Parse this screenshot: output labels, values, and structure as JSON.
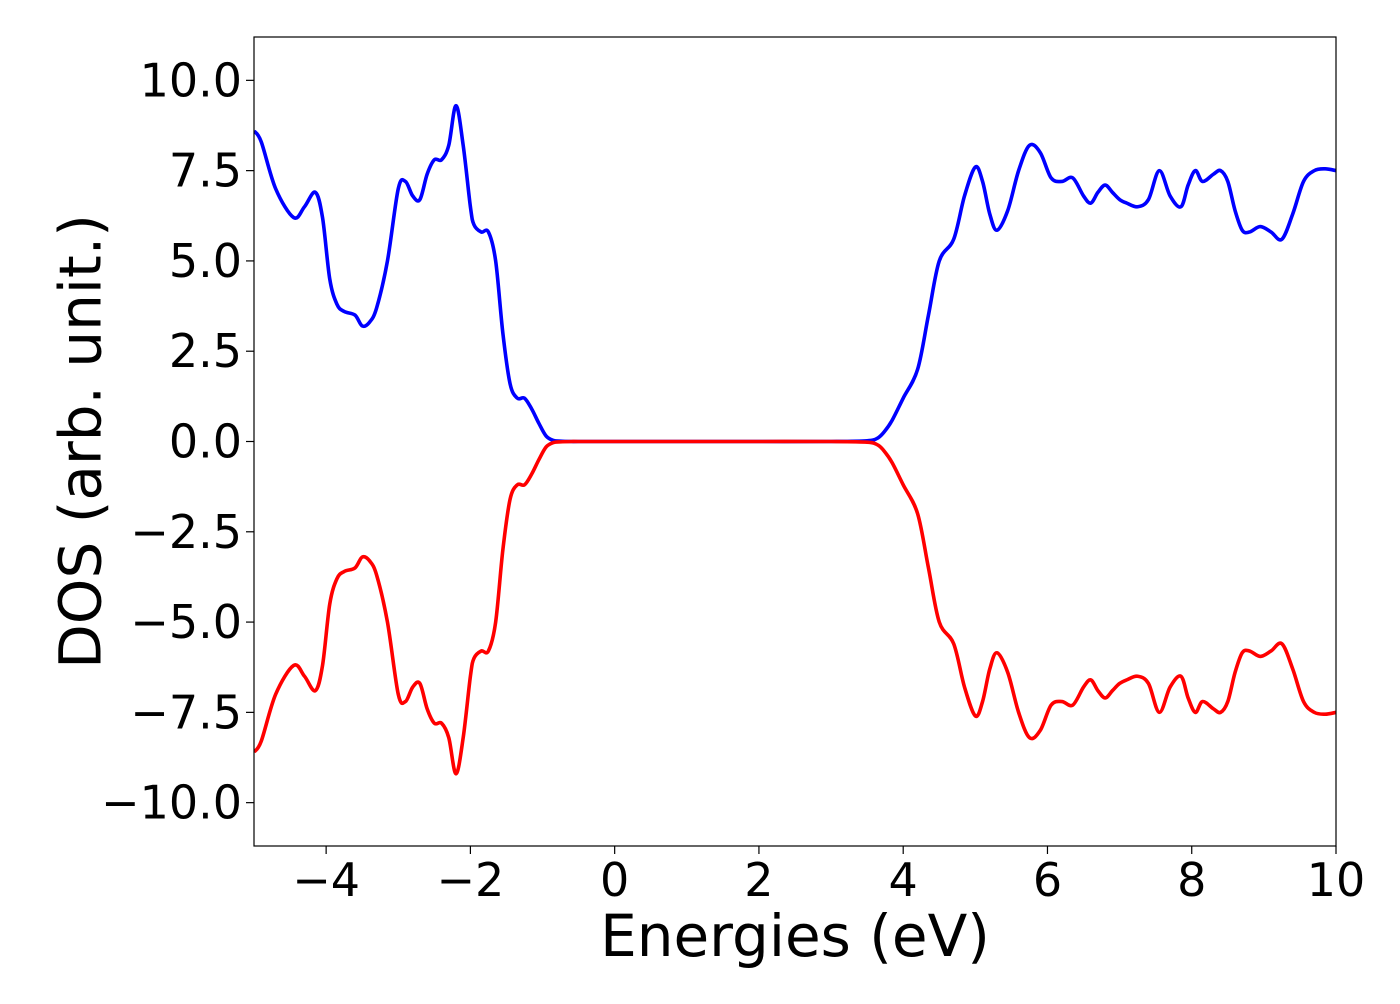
{
  "chart_data": {
    "type": "line",
    "title": "",
    "xlabel": "Energies (eV)",
    "ylabel": "DOS (arb. unit.)",
    "xlim": [
      -5,
      10
    ],
    "ylim": [
      -11.2,
      11.2
    ],
    "xticks": [
      -4,
      -2,
      0,
      2,
      4,
      6,
      8,
      10
    ],
    "xtick_labels": [
      "−4",
      "−2",
      "0",
      "2",
      "4",
      "6",
      "8",
      "10"
    ],
    "yticks": [
      10,
      7.5,
      5,
      2.5,
      0,
      -2.5,
      -5,
      -7.5,
      -10
    ],
    "ytick_labels": [
      "10.0",
      "7.5",
      "5.0",
      "2.5",
      "0.0",
      "−2.5",
      "−5.0",
      "−7.5",
      "−10.0"
    ],
    "grid": false,
    "legend": "none",
    "colors": {
      "spin_up": "#0000ff",
      "spin_down": "#ff0000",
      "axes": "#000000",
      "background": "#ffffff"
    },
    "series": [
      {
        "color": "#0000ff",
        "x": [
          -5.0,
          -4.9,
          -4.7,
          -4.45,
          -4.3,
          -4.15,
          -4.05,
          -3.95,
          -3.85,
          -3.75,
          -3.6,
          -3.5,
          -3.4,
          -3.3,
          -3.15,
          -3.0,
          -2.9,
          -2.8,
          -2.7,
          -2.6,
          -2.5,
          -2.4,
          -2.3,
          -2.2,
          -2.1,
          -2.0,
          -1.95,
          -1.85,
          -1.75,
          -1.65,
          -1.55,
          -1.45,
          -1.35,
          -1.25,
          -1.15,
          -1.05,
          -0.95,
          -0.85,
          -0.75,
          -0.6,
          -0.5,
          0.0,
          1.0,
          2.0,
          3.0,
          3.5,
          3.65,
          3.75,
          3.85,
          4.0,
          4.2,
          4.35,
          4.5,
          4.7,
          4.85,
          5.0,
          5.1,
          5.2,
          5.3,
          5.45,
          5.6,
          5.75,
          5.9,
          6.05,
          6.2,
          6.35,
          6.5,
          6.6,
          6.7,
          6.8,
          6.9,
          7.0,
          7.1,
          7.25,
          7.4,
          7.55,
          7.7,
          7.85,
          7.95,
          8.05,
          8.15,
          8.3,
          8.4,
          8.5,
          8.6,
          8.7,
          8.8,
          8.95,
          9.1,
          9.25,
          9.4,
          9.55,
          9.7,
          9.85,
          10.0
        ],
        "y": [
          8.6,
          8.3,
          7.0,
          6.2,
          6.5,
          6.9,
          6.2,
          4.5,
          3.8,
          3.6,
          3.5,
          3.2,
          3.3,
          3.7,
          5.0,
          7.0,
          7.2,
          6.8,
          6.7,
          7.4,
          7.8,
          7.8,
          8.2,
          9.3,
          8.2,
          6.5,
          6.0,
          5.8,
          5.8,
          5.0,
          3.0,
          1.6,
          1.2,
          1.2,
          0.9,
          0.5,
          0.15,
          0.03,
          0.01,
          0.0,
          0.0,
          0.0,
          0.0,
          0.0,
          0.0,
          0.02,
          0.1,
          0.3,
          0.6,
          1.2,
          2.0,
          3.5,
          5.0,
          5.6,
          6.8,
          7.6,
          7.2,
          6.3,
          5.85,
          6.4,
          7.5,
          8.2,
          8.0,
          7.3,
          7.2,
          7.3,
          6.8,
          6.6,
          6.9,
          7.1,
          6.9,
          6.7,
          6.6,
          6.5,
          6.7,
          7.5,
          6.8,
          6.5,
          7.1,
          7.5,
          7.2,
          7.4,
          7.5,
          7.2,
          6.4,
          5.85,
          5.8,
          5.95,
          5.8,
          5.6,
          6.3,
          7.2,
          7.5,
          7.55,
          7.5
        ]
      },
      {
        "color": "#ff0000",
        "x": [
          -5.0,
          -4.9,
          -4.7,
          -4.45,
          -4.3,
          -4.15,
          -4.05,
          -3.95,
          -3.85,
          -3.75,
          -3.6,
          -3.5,
          -3.4,
          -3.3,
          -3.15,
          -3.0,
          -2.9,
          -2.8,
          -2.7,
          -2.6,
          -2.5,
          -2.4,
          -2.3,
          -2.2,
          -2.1,
          -2.0,
          -1.95,
          -1.85,
          -1.75,
          -1.65,
          -1.55,
          -1.45,
          -1.35,
          -1.25,
          -1.15,
          -1.05,
          -0.95,
          -0.85,
          -0.75,
          -0.6,
          -0.5,
          0.0,
          1.0,
          2.0,
          3.0,
          3.5,
          3.65,
          3.75,
          3.85,
          4.0,
          4.2,
          4.35,
          4.5,
          4.7,
          4.85,
          5.0,
          5.1,
          5.2,
          5.3,
          5.45,
          5.6,
          5.75,
          5.9,
          6.05,
          6.2,
          6.35,
          6.5,
          6.6,
          6.7,
          6.8,
          6.9,
          7.0,
          7.1,
          7.25,
          7.4,
          7.55,
          7.7,
          7.85,
          7.95,
          8.05,
          8.15,
          8.3,
          8.4,
          8.5,
          8.6,
          8.7,
          8.8,
          8.95,
          9.1,
          9.25,
          9.4,
          9.55,
          9.7,
          9.85,
          10.0
        ],
        "y": [
          -8.6,
          -8.3,
          -7.0,
          -6.2,
          -6.5,
          -6.9,
          -6.2,
          -4.5,
          -3.8,
          -3.6,
          -3.5,
          -3.2,
          -3.3,
          -3.7,
          -5.0,
          -7.0,
          -7.2,
          -6.8,
          -6.7,
          -7.4,
          -7.8,
          -7.8,
          -8.2,
          -9.2,
          -8.2,
          -6.5,
          -6.0,
          -5.8,
          -5.8,
          -5.0,
          -3.0,
          -1.6,
          -1.2,
          -1.2,
          -0.9,
          -0.5,
          -0.15,
          -0.03,
          -0.01,
          0.0,
          0.0,
          0.0,
          0.0,
          0.0,
          0.0,
          -0.02,
          -0.1,
          -0.3,
          -0.6,
          -1.2,
          -2.0,
          -3.5,
          -5.0,
          -5.6,
          -6.8,
          -7.6,
          -7.2,
          -6.3,
          -5.85,
          -6.4,
          -7.5,
          -8.2,
          -8.0,
          -7.3,
          -7.2,
          -7.3,
          -6.8,
          -6.6,
          -6.9,
          -7.1,
          -6.9,
          -6.7,
          -6.6,
          -6.5,
          -6.7,
          -7.5,
          -6.8,
          -6.5,
          -7.1,
          -7.5,
          -7.2,
          -7.4,
          -7.5,
          -7.2,
          -6.4,
          -5.85,
          -5.8,
          -5.95,
          -5.8,
          -5.6,
          -6.3,
          -7.2,
          -7.5,
          -7.55,
          -7.5
        ]
      }
    ]
  }
}
